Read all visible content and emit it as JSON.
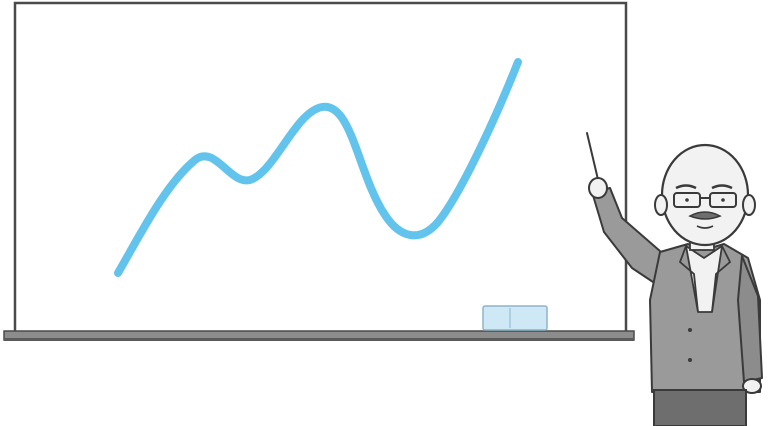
{
  "scene": {
    "description_visible_text": "",
    "colors": {
      "background": "#ffffff",
      "board_fill": "#ffffff",
      "board_outline": "#4a4a4a",
      "ledge": "#8c8c8c",
      "ledge_shadow": "#5a5a5a",
      "trend_line": "#62c3ec",
      "eraser_body": "#cfe8f6",
      "eraser_outline": "#8fb3c8",
      "suit": "#9a9a9a",
      "suit_dark": "#6e6e6e",
      "skin": "#f2f2f2",
      "outline": "#3a3a3a"
    },
    "icons": {
      "board": "whiteboard",
      "trend": "trend-line",
      "eraser": "eraser-icon",
      "pointer": "pointer-stick",
      "person": "teacher-figure"
    }
  }
}
